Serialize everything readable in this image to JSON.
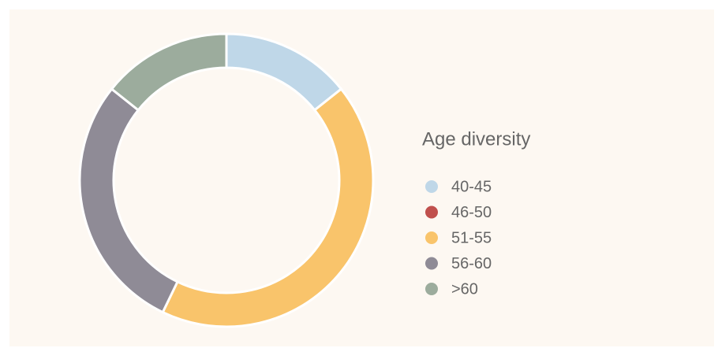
{
  "chart_data": {
    "type": "donut",
    "title": "Age diversity",
    "categories": [
      "40-45",
      "46-50",
      "51-55",
      "56-60",
      ">60"
    ],
    "values": [
      1,
      0,
      3,
      2,
      1
    ],
    "colors": [
      "#bfd7e8",
      "#c0504d",
      "#f9c46b",
      "#8f8b96",
      "#9cac9d"
    ],
    "legend": "right"
  }
}
